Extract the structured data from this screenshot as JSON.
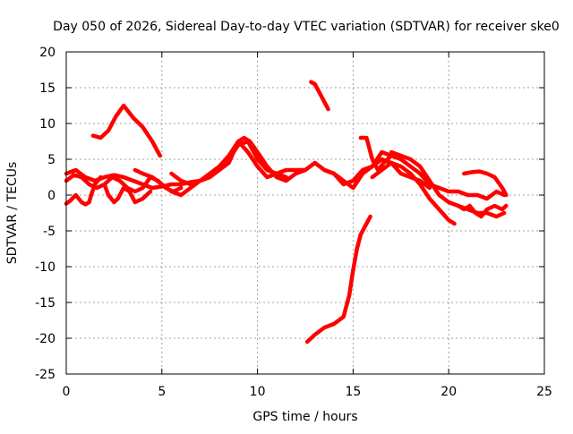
{
  "chart_data": {
    "type": "line",
    "title": "Day 050 of 2026, Sidereal Day-to-day VTEC variation (SDTVAR) for receiver ske0",
    "xlabel": "GPS time / hours",
    "ylabel": "SDTVAR / TECUs",
    "xlim": [
      0,
      25
    ],
    "ylim": [
      -25,
      20
    ],
    "xticks": [
      0,
      5,
      10,
      15,
      20,
      25
    ],
    "yticks": [
      -25,
      -20,
      -15,
      -10,
      -5,
      0,
      5,
      10,
      15,
      20
    ],
    "xtick_labels": [
      "0",
      "5",
      "10",
      "15",
      "20",
      "25"
    ],
    "ytick_labels": [
      "-25",
      "-20",
      "-15",
      "-10",
      "-5",
      "0",
      "5",
      "10",
      "15",
      "20"
    ],
    "grid": true,
    "legend": "none",
    "color": "#ff0000",
    "series": [
      {
        "name": "s1",
        "x": [
          0.0,
          0.5,
          1.0,
          1.5,
          2.0,
          2.5,
          3.0,
          3.5,
          4.0,
          4.5,
          5.0,
          5.5,
          6.0,
          6.5,
          7.0
        ],
        "y": [
          3.0,
          3.5,
          2.5,
          2.0,
          2.5,
          2.8,
          2.5,
          2.0,
          1.5,
          1.0,
          1.2,
          1.5,
          1.5,
          1.8,
          2.0
        ]
      },
      {
        "name": "s2",
        "x": [
          0.0,
          0.4,
          0.8,
          1.2,
          1.6,
          2.0,
          2.4,
          2.8,
          3.2,
          3.6,
          4.0,
          4.4,
          4.8,
          5.2,
          5.6,
          6.0
        ],
        "y": [
          2.0,
          2.8,
          2.5,
          1.5,
          1.0,
          1.5,
          2.5,
          2.0,
          1.0,
          0.5,
          1.0,
          2.5,
          2.0,
          1.0,
          0.5,
          1.0
        ]
      },
      {
        "name": "s3",
        "x": [
          0.0,
          0.2,
          0.5,
          0.8,
          1.0,
          1.2,
          1.3,
          1.5,
          1.8
        ],
        "y": [
          -1.2,
          -0.8,
          0.0,
          -1.0,
          -1.3,
          -1.0,
          0.0,
          1.5,
          2.5
        ]
      },
      {
        "name": "s4",
        "x": [
          1.4,
          1.8,
          2.2,
          2.6,
          3.0,
          3.5,
          4.0,
          4.5,
          4.9
        ],
        "y": [
          8.3,
          8.0,
          9.0,
          11.0,
          12.5,
          10.8,
          9.5,
          7.5,
          5.5
        ]
      },
      {
        "name": "s5",
        "x": [
          2.0,
          2.2,
          2.5,
          2.7,
          3.0,
          3.3,
          3.6,
          4.0,
          4.4
        ],
        "y": [
          1.5,
          0.0,
          -1.0,
          -0.5,
          1.0,
          0.5,
          -1.0,
          -0.5,
          0.5
        ]
      },
      {
        "name": "s6",
        "x": [
          3.6,
          4.0,
          4.5,
          5.0,
          5.5,
          6.0,
          6.5,
          7.0,
          7.5,
          8.0,
          8.5,
          9.0,
          9.5,
          10.0,
          10.5,
          11.0,
          11.5,
          12.0,
          12.5,
          13.0,
          13.5,
          14.0,
          14.5,
          15.0,
          15.5,
          16.0,
          16.5,
          17.0,
          17.5,
          18.0,
          18.5,
          19.0
        ],
        "y": [
          3.5,
          3.0,
          2.5,
          1.5,
          0.5,
          0.0,
          1.0,
          2.0,
          2.5,
          3.5,
          4.5,
          7.5,
          6.0,
          4.0,
          2.5,
          3.0,
          3.5,
          3.5,
          3.5,
          4.5,
          3.5,
          3.0,
          1.5,
          2.0,
          3.5,
          4.0,
          5.0,
          4.5,
          3.0,
          2.5,
          2.0,
          1.0
        ]
      },
      {
        "name": "s7",
        "x": [
          5.5,
          6.0,
          6.5,
          7.0,
          7.5,
          8.0,
          8.5,
          9.0,
          9.3,
          9.6,
          10.0,
          10.5,
          11.0,
          11.5,
          12.0,
          12.5,
          13.0,
          13.5,
          14.0,
          14.5,
          15.0,
          15.5,
          16.0,
          16.5,
          17.0
        ],
        "y": [
          3.0,
          2.0,
          1.5,
          2.0,
          3.0,
          4.0,
          5.5,
          7.5,
          8.0,
          7.5,
          6.0,
          4.0,
          2.5,
          2.0,
          3.0,
          3.5,
          4.5,
          3.5,
          3.0,
          2.0,
          1.0,
          3.0,
          4.0,
          6.0,
          5.5
        ]
      },
      {
        "name": "s8",
        "x": [
          7.0,
          7.5,
          8.0,
          8.5,
          9.0,
          9.5,
          10.0,
          10.5,
          11.0,
          11.5
        ],
        "y": [
          2.0,
          2.5,
          3.5,
          5.0,
          7.0,
          7.5,
          5.0,
          3.5,
          3.0,
          2.5
        ]
      },
      {
        "name": "s9",
        "x": [
          12.8,
          13.0,
          13.2,
          13.4,
          13.6,
          13.7
        ],
        "y": [
          15.8,
          15.5,
          14.5,
          13.5,
          12.5,
          12.0
        ]
      },
      {
        "name": "s10",
        "x": [
          12.6,
          13.0,
          13.5,
          14.0,
          14.5,
          14.8,
          15.0,
          15.2,
          15.4,
          15.6,
          15.8,
          15.9
        ],
        "y": [
          -20.5,
          -19.5,
          -18.5,
          -18.0,
          -17.0,
          -14.0,
          -10.5,
          -7.5,
          -5.5,
          -4.5,
          -3.5,
          -3.0
        ]
      },
      {
        "name": "s11",
        "x": [
          15.4,
          15.7,
          16.0,
          16.3,
          16.6,
          17.0,
          17.5,
          18.0,
          18.5,
          19.0,
          19.5,
          20.0,
          20.5,
          21.0,
          21.5,
          22.0,
          22.5,
          22.9
        ],
        "y": [
          8.0,
          8.0,
          5.0,
          3.5,
          4.5,
          5.5,
          5.0,
          4.0,
          3.0,
          1.5,
          1.0,
          0.5,
          0.5,
          0.0,
          0.0,
          -0.5,
          0.5,
          0.0
        ]
      },
      {
        "name": "s12",
        "x": [
          16.0,
          16.5,
          17.0,
          17.5,
          18.0,
          18.5,
          19.0,
          19.5,
          20.0,
          20.3
        ],
        "y": [
          2.5,
          3.5,
          4.5,
          4.0,
          3.0,
          1.5,
          -0.5,
          -2.0,
          -3.5,
          -4.0
        ]
      },
      {
        "name": "s13",
        "x": [
          17.0,
          17.5,
          18.0,
          18.5,
          19.0,
          19.5,
          20.0,
          20.5,
          21.0,
          21.5,
          22.0,
          22.5,
          22.9
        ],
        "y": [
          6.0,
          5.5,
          5.0,
          4.0,
          2.0,
          0.0,
          -1.0,
          -1.5,
          -2.0,
          -2.5,
          -2.5,
          -3.0,
          -2.5
        ]
      },
      {
        "name": "s14",
        "x": [
          20.8,
          21.2,
          21.6,
          22.0,
          22.4,
          22.8,
          23.0
        ],
        "y": [
          3.0,
          3.2,
          3.3,
          3.0,
          2.5,
          1.0,
          0.0
        ]
      },
      {
        "name": "s15",
        "x": [
          20.5,
          20.8,
          21.1,
          21.4,
          21.7,
          22.0,
          22.4,
          22.8,
          23.0
        ],
        "y": [
          -1.5,
          -2.0,
          -1.5,
          -2.5,
          -3.0,
          -2.0,
          -1.5,
          -2.0,
          -1.5
        ]
      }
    ]
  }
}
